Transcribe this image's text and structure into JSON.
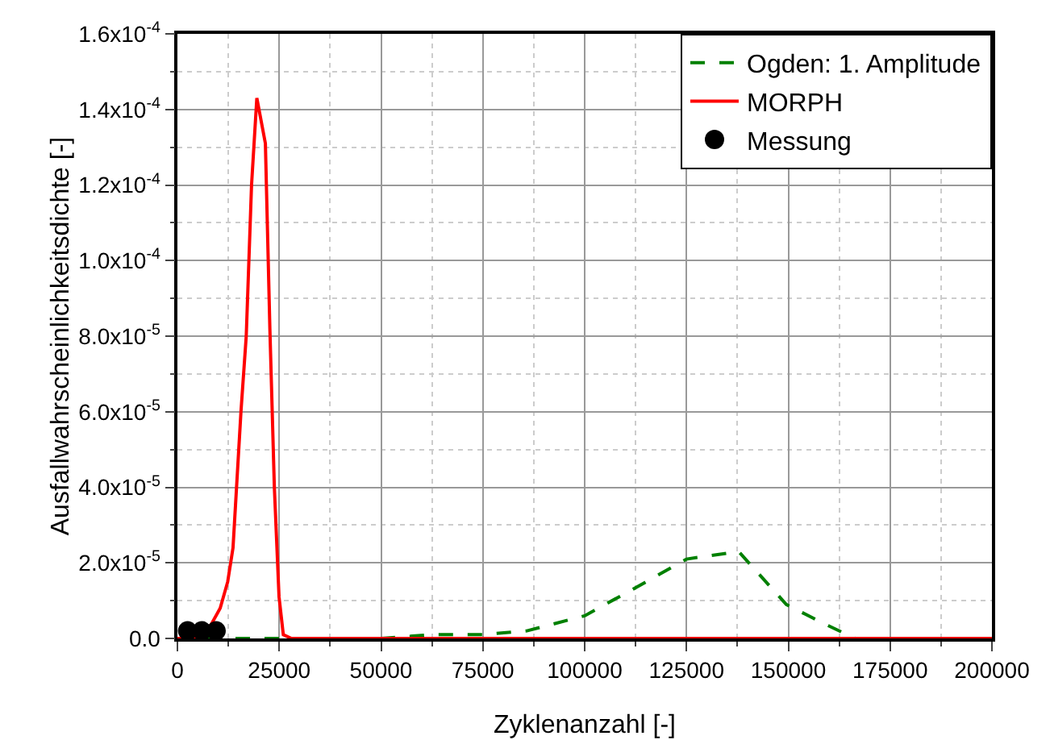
{
  "chart_data": {
    "type": "line",
    "xlabel": "Zyklenanzahl [-]",
    "ylabel": "Ausfallwahrscheinlichkeitsdichte [-]",
    "xlim": [
      0,
      200000
    ],
    "ylim": [
      0,
      0.00016
    ],
    "xticks": [
      0,
      {
        "value": 12500,
        "label": null
      },
      25000,
      {
        "value": 37500,
        "label": null
      },
      50000,
      {
        "value": 62500,
        "label": null
      },
      75000,
      {
        "value": 87500,
        "label": null
      },
      100000,
      {
        "value": 112500,
        "label": null
      },
      125000,
      {
        "value": 137500,
        "label": null
      },
      150000,
      {
        "value": 162500,
        "label": null
      },
      175000,
      {
        "value": 187500,
        "label": null
      },
      200000
    ],
    "yticks": [
      {
        "value": 0,
        "label": "0.0"
      },
      {
        "value": 1e-05,
        "label": null
      },
      {
        "value": 2e-05,
        "label": "2.0x10$^{-5}$"
      },
      {
        "value": 3e-05,
        "label": null
      },
      {
        "value": 4e-05,
        "label": "4.0x10$^{-5}$"
      },
      {
        "value": 5e-05,
        "label": null
      },
      {
        "value": 6e-05,
        "label": "6.0x10$^{-5}$"
      },
      {
        "value": 7e-05,
        "label": null
      },
      {
        "value": 8e-05,
        "label": "8.0x10$^{-5}$"
      },
      {
        "value": 9e-05,
        "label": null
      },
      {
        "value": 0.0001,
        "label": "1.0x10$^{-4}$"
      },
      {
        "value": 0.00011,
        "label": null
      },
      {
        "value": 0.00012,
        "label": "1.2x10$^{-4}$"
      },
      {
        "value": 0.00013,
        "label": null
      },
      {
        "value": 0.00014,
        "label": "1.4x10$^{-4}$"
      },
      {
        "value": 0.00015,
        "label": null
      },
      {
        "value": 0.00016,
        "label": "1.6x10$^{-4}$"
      }
    ],
    "grid": true,
    "legend": "top right",
    "series": [
      {
        "name": "Ogden: 1. Amplitude",
        "color": "#008000",
        "line_style": "dashed",
        "marker": "none",
        "x": [
          0,
          25000,
          50000,
          62500,
          75000,
          85800,
          100000,
          111800,
          125000,
          137800,
          149500,
          158600,
          166400,
          175000,
          200000
        ],
        "values": [
          0,
          0,
          0,
          1e-06,
          1e-06,
          2e-06,
          6e-06,
          1.3e-05,
          2.1e-05,
          2.3e-05,
          9e-06,
          4e-06,
          0,
          0,
          0
        ]
      },
      {
        "name": "MORPH",
        "color": "#ff0000",
        "line_style": "solid",
        "marker": "none",
        "x": [
          0,
          6000,
          8450,
          10500,
          12350,
          13650,
          15600,
          16900,
          18200,
          19500,
          21600,
          22700,
          23800,
          24950,
          26000,
          28000,
          200000
        ],
        "values": [
          0,
          0,
          4e-06,
          8e-06,
          1.5e-05,
          2.4e-05,
          6e-05,
          8e-05,
          0.00012,
          0.000143,
          0.000131,
          8.2e-05,
          4e-05,
          1.1e-05,
          1e-06,
          0,
          0
        ]
      },
      {
        "name": "Messung",
        "type": "scatter",
        "color": "#000000",
        "marker": "circle",
        "x": [
          2500,
          6000,
          9500
        ],
        "values": [
          2e-06,
          2e-06,
          2e-06
        ]
      }
    ]
  }
}
